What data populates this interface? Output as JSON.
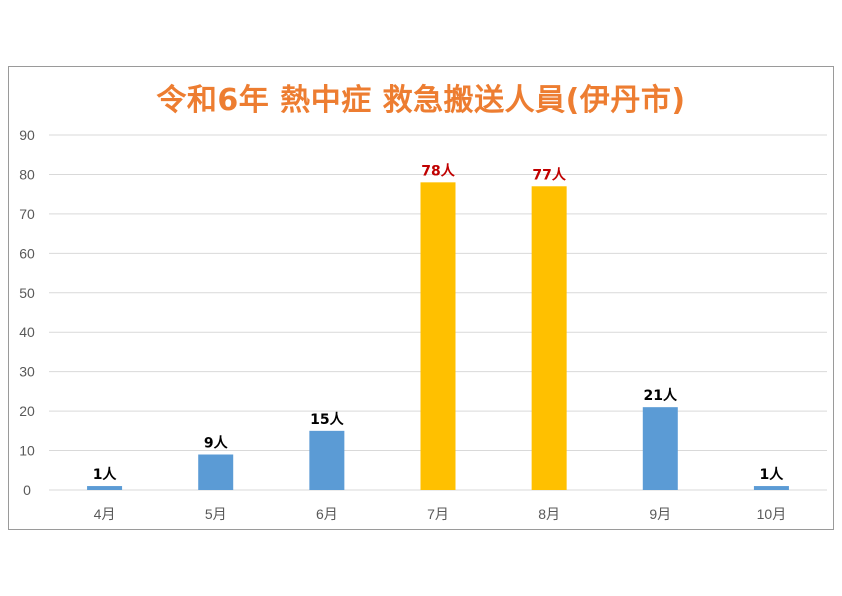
{
  "chart_data": {
    "type": "bar",
    "title": "令和6年 熱中症 救急搬送人員(伊丹市)",
    "categories": [
      "4月",
      "5月",
      "6月",
      "7月",
      "8月",
      "9月",
      "10月"
    ],
    "values": [
      1,
      9,
      15,
      78,
      77,
      21,
      1
    ],
    "data_labels": [
      "1人",
      "9人",
      "15人",
      "78人",
      "77人",
      "21人",
      "1人"
    ],
    "ylim": [
      0,
      90
    ],
    "yticks": [
      0,
      10,
      20,
      30,
      40,
      50,
      60,
      70,
      80,
      90
    ],
    "grid": true,
    "legend": "none",
    "colors": {
      "bar_default": "#5b9bd5",
      "bar_highlight": "#ffc000",
      "label_default": "#000000",
      "label_highlight": "#c00000",
      "title": "#ed7d31",
      "grid": "#d9d9d9"
    },
    "highlight_indices": [
      3,
      4
    ]
  }
}
